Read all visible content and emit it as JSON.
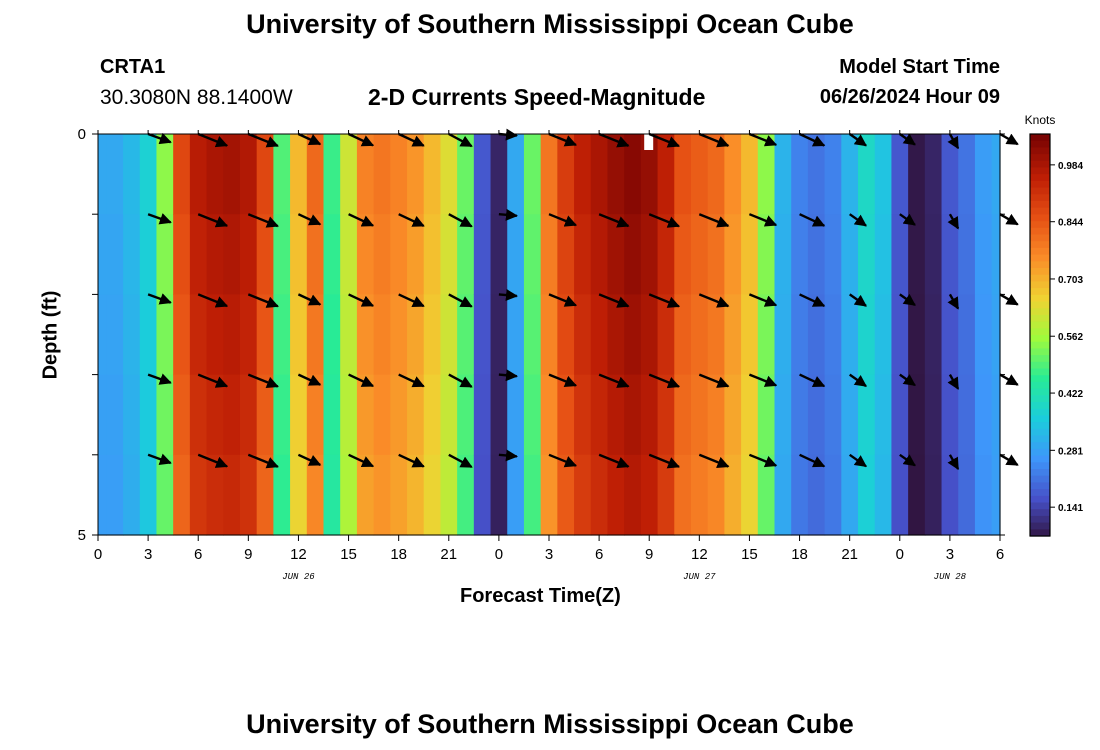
{
  "header": {
    "title_top": "University of Southern Mississippi Ocean Cube",
    "station": "CRTA1",
    "coords": "30.3080N  88.1400W",
    "subtitle": "2-D Currents Speed-Magnitude",
    "start_label": "Model Start Time",
    "start_value": "06/26/2024 Hour 09",
    "title_bottom": "University of Southern Mississippi Ocean Cube"
  },
  "chart_data": {
    "type": "heatmap",
    "title": "2-D Currents Speed-Magnitude",
    "xlabel": "Forecast Time(Z)",
    "ylabel": "Depth (ft)",
    "x_ticks": [
      "0",
      "3",
      "6",
      "9",
      "12",
      "15",
      "18",
      "21",
      "0",
      "3",
      "6",
      "9",
      "12",
      "15",
      "18",
      "21",
      "0",
      "3",
      "6"
    ],
    "x_range_hours": [
      0,
      54
    ],
    "y_ticks": [
      "0",
      "5"
    ],
    "y_range_ft": [
      0,
      5
    ],
    "date_labels": [
      {
        "text": "JUN 26",
        "hour": 12
      },
      {
        "text": "JUN 27",
        "hour": 36
      },
      {
        "text": "JUN 28",
        "hour": 51
      }
    ],
    "colorbar": {
      "label": "Knots",
      "ticks": [
        "0.141",
        "0.281",
        "0.422",
        "0.562",
        "0.703",
        "0.844",
        "0.984"
      ],
      "tick_values": [
        0.141,
        0.281,
        0.422,
        0.562,
        0.703,
        0.844,
        0.984
      ],
      "range": [
        0.07,
        1.06
      ]
    },
    "speed_by_hour": [
      0.3,
      0.3,
      0.33,
      0.38,
      0.55,
      0.88,
      0.97,
      0.99,
      1.0,
      0.98,
      0.88,
      0.5,
      0.7,
      0.82,
      0.48,
      0.62,
      0.78,
      0.8,
      0.78,
      0.75,
      0.7,
      0.64,
      0.52,
      0.18,
      0.1,
      0.3,
      0.52,
      0.8,
      0.9,
      0.96,
      0.99,
      1.02,
      1.04,
      1.02,
      0.96,
      0.86,
      0.84,
      0.82,
      0.76,
      0.7,
      0.55,
      0.32,
      0.24,
      0.22,
      0.24,
      0.32,
      0.4,
      0.35,
      0.18,
      0.08,
      0.1,
      0.18,
      0.22,
      0.28,
      0.3
    ],
    "depth_factors": [
      1.0,
      0.985,
      0.97,
      0.955,
      0.94
    ],
    "arrow_depths_ft": [
      0,
      1,
      2,
      3,
      4
    ],
    "arrow_columns": [
      {
        "hour": 3,
        "dir": 110,
        "mag": 0.6
      },
      {
        "hour": 6,
        "dir": 112,
        "mag": 0.95
      },
      {
        "hour": 9,
        "dir": 112,
        "mag": 0.99
      },
      {
        "hour": 12,
        "dir": 115,
        "mag": 0.6
      },
      {
        "hour": 15,
        "dir": 115,
        "mag": 0.75
      },
      {
        "hour": 18,
        "dir": 115,
        "mag": 0.78
      },
      {
        "hour": 21,
        "dir": 118,
        "mag": 0.7
      },
      {
        "hour": 24,
        "dir": 95,
        "mag": 0.3
      },
      {
        "hour": 27,
        "dir": 112,
        "mag": 0.85
      },
      {
        "hour": 30,
        "dir": 112,
        "mag": 0.98
      },
      {
        "hour": 33,
        "dir": 112,
        "mag": 1.02
      },
      {
        "hour": 36,
        "dir": 112,
        "mag": 0.96
      },
      {
        "hour": 39,
        "dir": 112,
        "mag": 0.84
      },
      {
        "hour": 42,
        "dir": 115,
        "mag": 0.76
      },
      {
        "hour": 45,
        "dir": 125,
        "mag": 0.4
      },
      {
        "hour": 48,
        "dir": 125,
        "mag": 0.32
      },
      {
        "hour": 51,
        "dir": 150,
        "mag": 0.22
      },
      {
        "hour": 54,
        "dir": 120,
        "mag": 0.42
      }
    ],
    "missing_cell": {
      "hour": 33,
      "depth_ft": 0
    }
  }
}
